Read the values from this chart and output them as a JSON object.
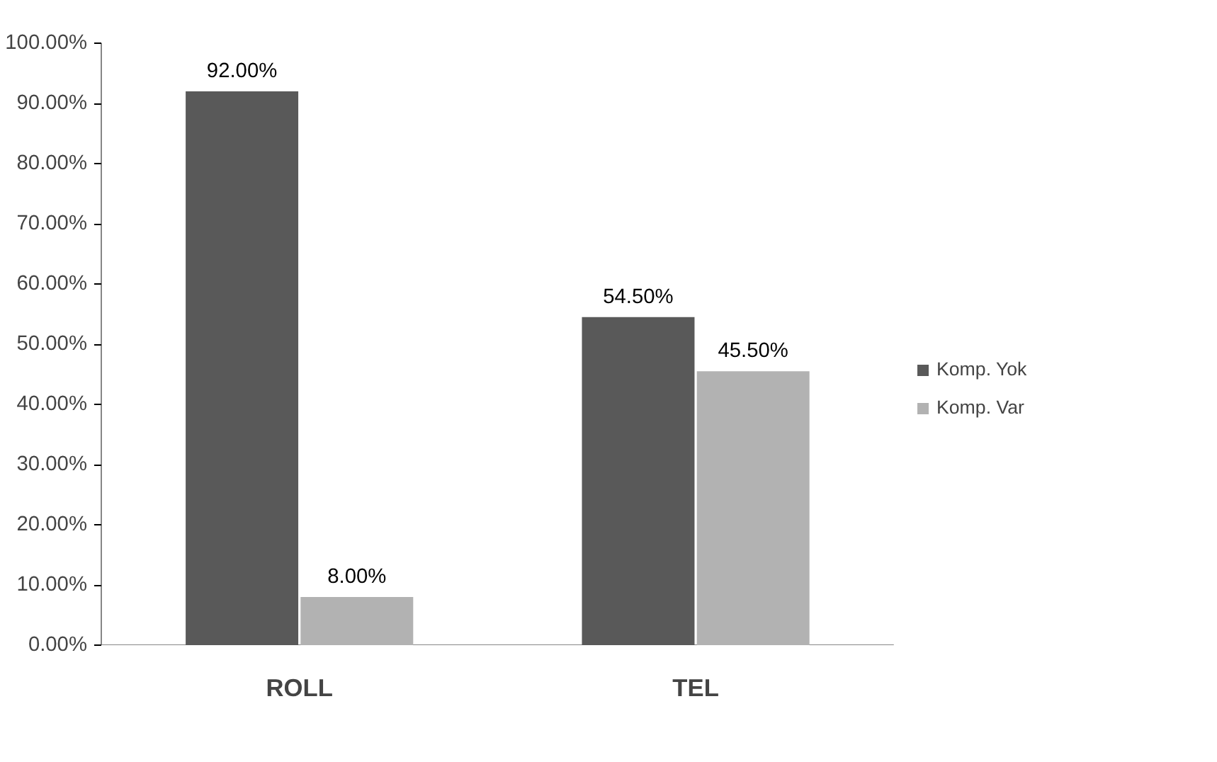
{
  "chart_data": {
    "type": "bar",
    "categories": [
      "ROLL",
      "TEL"
    ],
    "series": [
      {
        "name": "Komp. Yok",
        "color": "#595959",
        "values": [
          92,
          54.5
        ],
        "value_labels": [
          "92.00%",
          "54.50%"
        ]
      },
      {
        "name": "Komp. Var",
        "color": "#b2b2b2",
        "values": [
          8,
          45.5
        ],
        "value_labels": [
          "8.00%",
          "45.50%"
        ]
      }
    ],
    "ylim": [
      0,
      100
    ],
    "yticks": [
      {
        "value": 0,
        "label": "0.00%"
      },
      {
        "value": 10,
        "label": "10.00%"
      },
      {
        "value": 20,
        "label": "20.00%"
      },
      {
        "value": 30,
        "label": "30.00%"
      },
      {
        "value": 40,
        "label": "40.00%"
      },
      {
        "value": 50,
        "label": "50.00%"
      },
      {
        "value": 60,
        "label": "60.00%"
      },
      {
        "value": 70,
        "label": "70.00%"
      },
      {
        "value": 80,
        "label": "80.00%"
      },
      {
        "value": 90,
        "label": "90.00%"
      },
      {
        "value": 100,
        "label": "100.00%"
      }
    ],
    "grid": false,
    "legend": "right"
  }
}
